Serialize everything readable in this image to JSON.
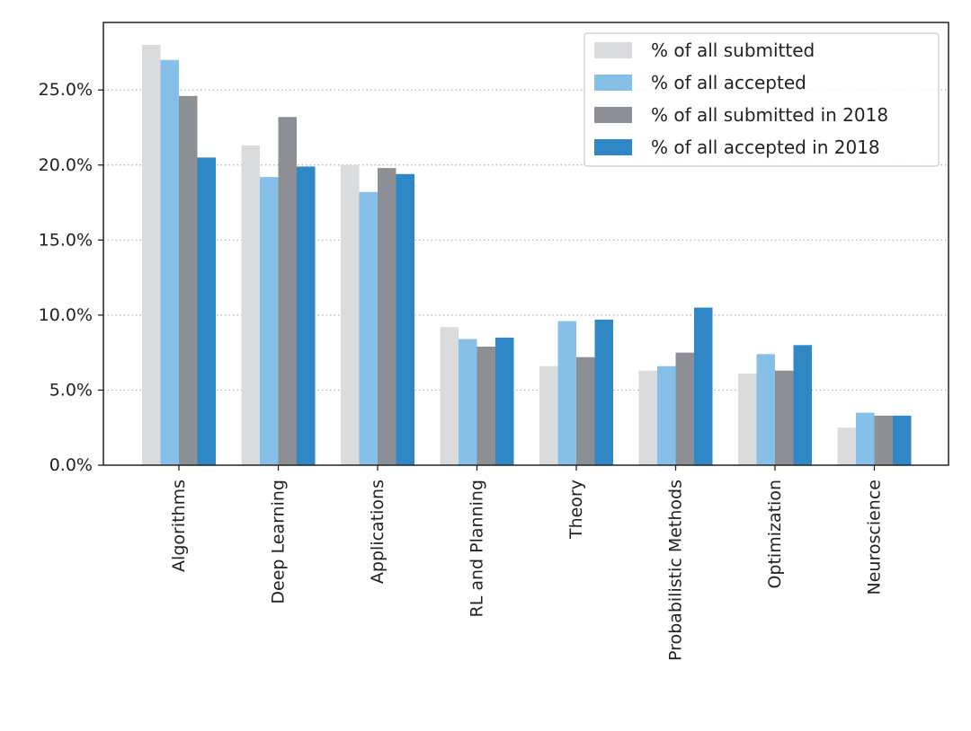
{
  "chart_data": {
    "type": "bar",
    "categories": [
      "Algorithms",
      "Deep Learning",
      "Applications",
      "RL and Planning",
      "Theory",
      "Probabilistic Methods",
      "Optimization",
      "Neuroscience"
    ],
    "series": [
      {
        "name": "% of all submitted",
        "color": "#d9dbdd",
        "values": [
          28.0,
          21.3,
          20.0,
          9.2,
          6.6,
          6.3,
          6.1,
          2.5
        ]
      },
      {
        "name": "% of all accepted",
        "color": "#86c0e8",
        "values": [
          27.0,
          19.2,
          18.2,
          8.4,
          9.6,
          6.6,
          7.4,
          3.5
        ]
      },
      {
        "name": "% of all submitted in 2018",
        "color": "#8c8f93",
        "values": [
          24.6,
          23.2,
          19.8,
          7.9,
          7.2,
          7.5,
          6.3,
          3.3
        ]
      },
      {
        "name": "% of all accepted in 2018",
        "color": "#2f87c6",
        "values": [
          20.5,
          19.9,
          19.4,
          8.5,
          9.7,
          10.5,
          8.0,
          3.3
        ]
      }
    ],
    "yticks": [
      "0.0%",
      "5.0%",
      "10.0%",
      "15.0%",
      "20.0%",
      "25.0%"
    ],
    "ytick_values": [
      0,
      5,
      10,
      15,
      20,
      25
    ],
    "ylim": [
      0,
      29.5
    ],
    "ylabel": "",
    "xlabel": "",
    "title": "",
    "grid": "horizontal dotted",
    "legend_position": "top-right"
  }
}
